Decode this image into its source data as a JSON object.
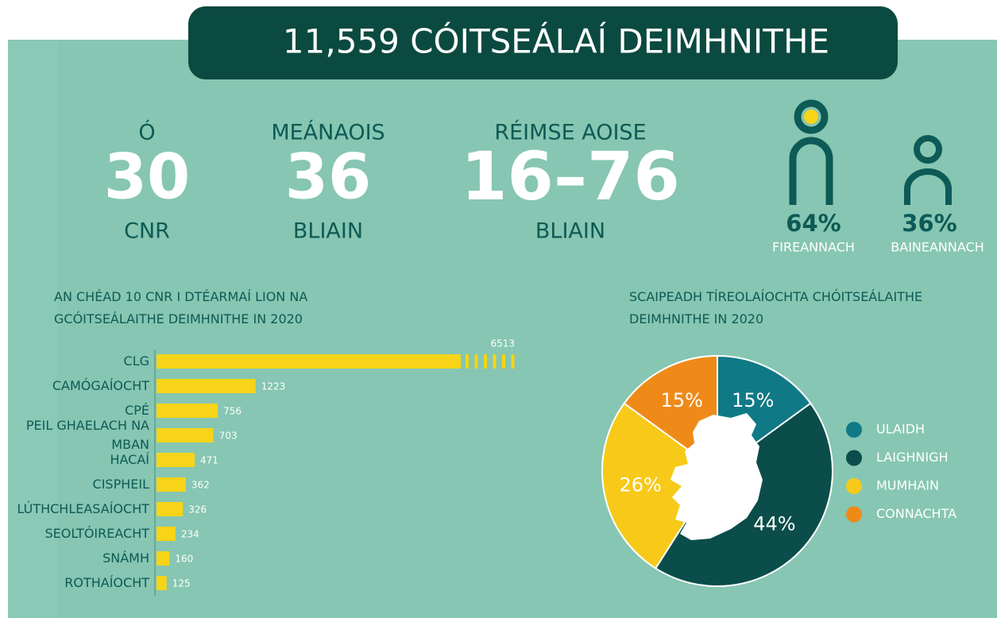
{
  "title": "11,559 CÓITSEÁLAÍ DEIMHNITHE",
  "stats": [
    {
      "top": "Ó",
      "value": "30",
      "bottom": "CNR"
    },
    {
      "top": "MEÁNAOIS",
      "value": "36",
      "bottom": "BLIAIN"
    },
    {
      "top": "RÉIMSE AOISE",
      "value": "16–76",
      "bottom": "BLIAIN"
    }
  ],
  "gender": [
    {
      "value": "64%",
      "label": "FIREANNACH"
    },
    {
      "value": "36%",
      "label": "BAINEANNACH"
    }
  ],
  "chart_data": [
    {
      "type": "bar",
      "orientation": "horizontal",
      "title": "AN CHÉAD 10 CNR I DTÉARMAÍ LION NA GCÓITSEÁLAITHE DEIMHNITHE IN 2020",
      "categories": [
        "CLG",
        "CAMÓGAÍOCHT",
        "CPÉ",
        "PEIL GHAELACH NA MBAN",
        "HACAÍ",
        "CISPHEIL",
        "LÚTHCHLEASAÍOCHT",
        "SEOLTÓIREACHT",
        "SNÁMH",
        "ROTHAÍOCHT"
      ],
      "values": [
        6513,
        1223,
        756,
        703,
        471,
        362,
        326,
        234,
        160,
        125
      ],
      "color": "#f7d417"
    },
    {
      "type": "pie",
      "title": "SCAIPEADH TÍREOLAÍOCHTA CHÓITSEÁLAITHE DEIMHNITHE IN 2020",
      "categories": [
        "ULAIDH",
        "LAIGHNIGH",
        "MUMHAIN",
        "CONNACHTA"
      ],
      "values": [
        15,
        44,
        26,
        15
      ],
      "value_labels": [
        "15%",
        "44%",
        "26%",
        "15%"
      ],
      "colors": [
        "#0f7a86",
        "#0b4d4a",
        "#f7c919",
        "#ef8a19"
      ],
      "legend": "right"
    }
  ]
}
